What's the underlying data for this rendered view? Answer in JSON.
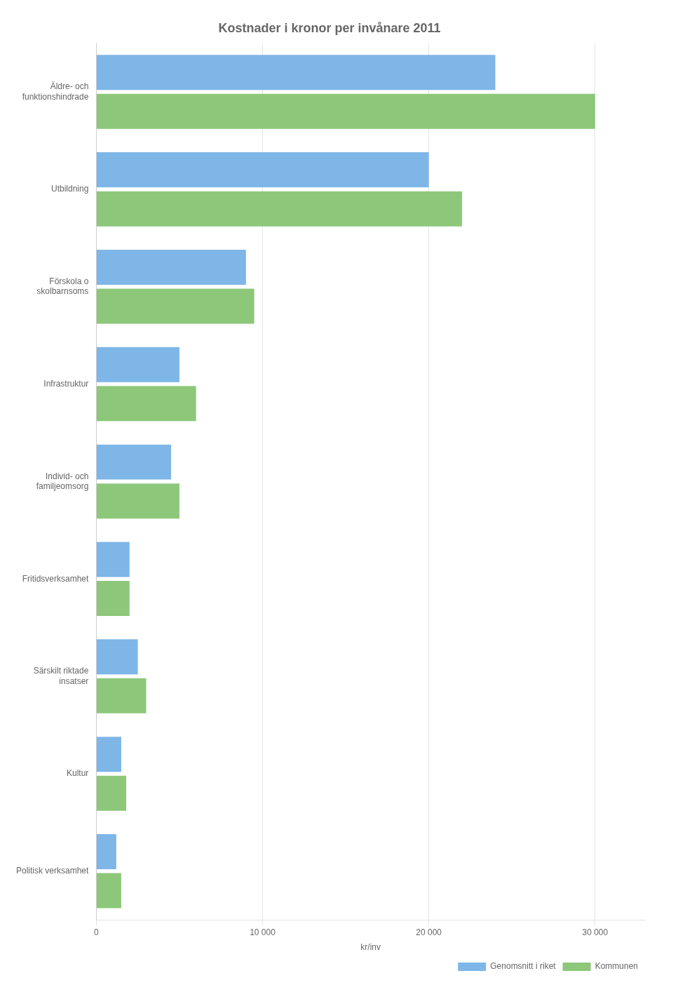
{
  "chart_data": {
    "type": "bar",
    "orientation": "horizontal",
    "title": "Kostnader i kronor per invånare 2011",
    "categories": [
      "Äldre- och\nfunktionshindrade",
      "Utbildning",
      "Förskola o\nskolbarnsoms",
      "Infrastruktur",
      "Individ- och\nfamiljeomsorg",
      "Fritidsverksamhet",
      "Särskilt riktade\ninsatser",
      "Kultur",
      "Politisk verksamhet"
    ],
    "series": [
      {
        "name": "Genomsnitt i riket",
        "color": "#7eb6e8",
        "values": [
          24000,
          20000,
          9000,
          5000,
          4500,
          2000,
          2500,
          1500,
          1200
        ]
      },
      {
        "name": "Kommunen",
        "color": "#8dc87a",
        "values": [
          30000,
          22000,
          9500,
          6000,
          5000,
          2000,
          3000,
          1800,
          1500
        ]
      }
    ],
    "xlabel": "kr/inv",
    "xlim": [
      0,
      33000
    ],
    "xticks": [
      0,
      {
        "value": 10000,
        "label": "10 000"
      },
      {
        "value": 20000,
        "label": "20 000"
      },
      {
        "value": 30000,
        "label": "30 000"
      }
    ],
    "grid": true,
    "legend": "lower right"
  }
}
